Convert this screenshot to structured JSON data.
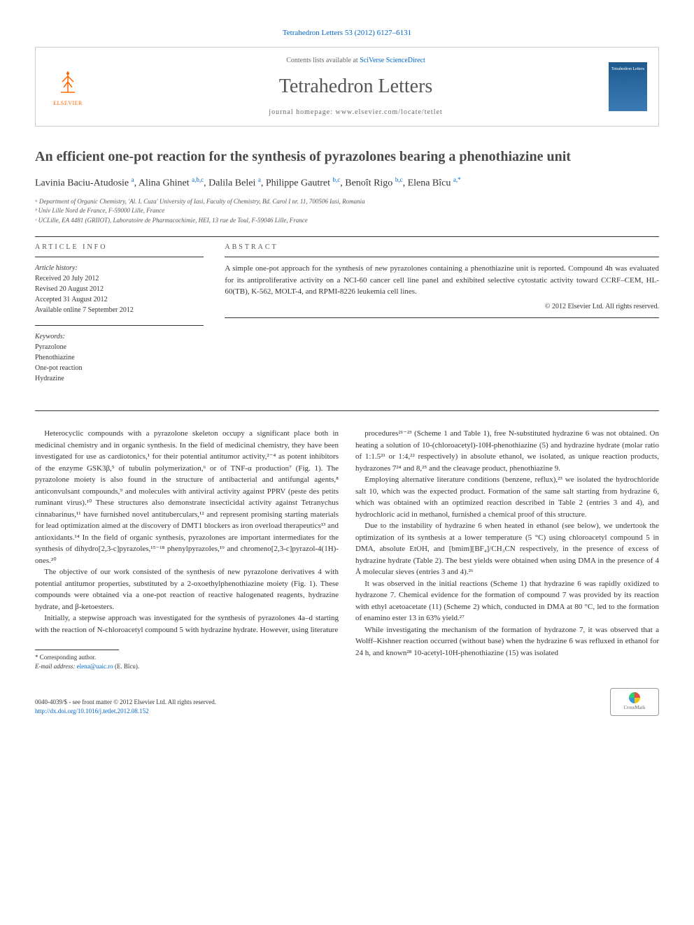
{
  "citation": "Tetrahedron Letters 53 (2012) 6127–6131",
  "header": {
    "contents_prefix": "Contents lists available at ",
    "contents_link": "SciVerse ScienceDirect",
    "journal_name": "Tetrahedron Letters",
    "homepage_prefix": "journal homepage: ",
    "homepage_url": "www.elsevier.com/locate/tetlet",
    "publisher": "ELSEVIER",
    "cover_label": "Tetrahedron Letters"
  },
  "title": "An efficient one-pot reaction for the synthesis of pyrazolones bearing a phenothiazine unit",
  "authors_html": "Lavinia Baciu-Atudosie <sup>a</sup>, Alina Ghinet <sup>a,b,c</sup>, Dalila Belei <sup>a</sup>, Philippe Gautret <sup>b,c</sup>, Benoît Rigo <sup>b,c</sup>, Elena Bîcu <sup>a,*</sup>",
  "affiliations": [
    "ᵃ Department of Organic Chemistry, 'Al. I. Cuza' University of Iasi, Faculty of Chemistry, Bd. Carol I nr. 11, 700506 Iasi, Romania",
    "ᵇ Univ Lille Nord de France, F-59000 Lille, France",
    "ᶜ UCLille, EA 4481 (GRIIOT), Laboratoire de Pharmacochimie, HEI, 13 rue de Toul, F-59046 Lille, France"
  ],
  "article_info": {
    "heading": "ARTICLE INFO",
    "history_label": "Article history:",
    "received": "Received 20 July 2012",
    "revised": "Revised 20 August 2012",
    "accepted": "Accepted 31 August 2012",
    "online": "Available online 7 September 2012",
    "keywords_label": "Keywords:",
    "keywords": [
      "Pyrazolone",
      "Phenothiazine",
      "One-pot reaction",
      "Hydrazine"
    ]
  },
  "abstract": {
    "heading": "ABSTRACT",
    "text": "A simple one-pot approach for the synthesis of new pyrazolones containing a phenothiazine unit is reported. Compound 4h was evaluated for its antiproliferative activity on a NCI-60 cancer cell line panel and exhibited selective cytostatic activity toward CCRF–CEM, HL-60(TB), K-562, MOLT-4, and RPMI-8226 leukemia cell lines.",
    "copyright": "© 2012 Elsevier Ltd. All rights reserved."
  },
  "body": {
    "p1": "Heterocyclic compounds with a pyrazolone skeleton occupy a significant place both in medicinal chemistry and in organic synthesis. In the field of medicinal chemistry, they have been investigated for use as cardiotonics,¹ for their potential antitumor activity,²⁻⁴ as potent inhibitors of the enzyme GSK3β,⁵ of tubulin polymerization,⁶ or of TNF-α production⁷ (Fig. 1). The pyrazolone moiety is also found in the structure of antibacterial and antifungal agents,⁸ anticonvulsant compounds,⁹ and molecules with antiviral activity against PPRV (peste des petits ruminant virus).¹⁰ These structures also demonstrate insecticidal activity against Tetranychus cinnabarinus,¹¹ have furnished novel antituberculars,¹² and represent promising starting materials for lead optimization aimed at the discovery of DMT1 blockers as iron overload therapeutics¹³ and antioxidants.¹⁴ In the field of organic synthesis, pyrazolones are important intermediates for the synthesis of dihydro[2,3-c]pyrazoles,¹⁵⁻¹⁸ phenylpyrazoles,¹⁹ and chromeno[2,3-c]pyrazol-4(1H)-ones.²⁰",
    "p2": "The objective of our work consisted of the synthesis of new pyrazolone derivatives 4 with potential antitumor properties, substituted by a 2-oxoethylphenothiazine moiety (Fig. 1). These compounds were obtained via a one-pot reaction of reactive halogenated reagents, hydrazine hydrate, and β-ketoesters.",
    "p3": "Initially, a stepwise approach was investigated for the synthesis of pyrazolones 4a–d starting with the reaction of N-chloroacetyl compound 5 with hydrazine hydrate. However, using literature",
    "p4": "procedures²¹⁻²³ (Scheme 1 and Table 1), free N-substituted hydrazine 6 was not obtained. On heating a solution of 10-(chloroacetyl)-10H-phenothiazine (5) and hydrazine hydrate (molar ratio of 1:1.5²¹ or 1:4,²² respectively) in absolute ethanol, we isolated, as unique reaction products, hydrazones 7²⁴ and 8,²⁵ and the cleavage product, phenothiazine 9.",
    "p5": "Employing alternative literature conditions (benzene, reflux),²³ we isolated the hydrochloride salt 10, which was the expected product. Formation of the same salt starting from hydrazine 6, which was obtained with an optimized reaction described in Table 2 (entries 3 and 4), and hydrochloric acid in methanol, furnished a chemical proof of this structure.",
    "p6": "Due to the instability of hydrazine 6 when heated in ethanol (see below), we undertook the optimization of its synthesis at a lower temperature (5 °C) using chloroacetyl compound 5 in DMA, absolute EtOH, and [bmim][BF₄]/CH₃CN respectively, in the presence of excess of hydrazine hydrate (Table 2). The best yields were obtained when using DMA in the presence of 4 Å molecular sieves (entries 3 and 4).²⁶",
    "p7": "It was observed in the initial reactions (Scheme 1) that hydrazine 6 was rapidly oxidized to hydrazone 7. Chemical evidence for the formation of compound 7 was provided by its reaction with ethyl acetoacetate (11) (Scheme 2) which, conducted in DMA at 80 °C, led to the formation of enamino ester 13 in 63% yield.²⁷",
    "p8": "While investigating the mechanism of the formation of hydrazone 7, it was observed that a Wolff–Kishner reaction occurred (without base) when the hydrazine 6 was refluxed in ethanol for 24 h, and known²⁸ 10-acetyl-10H-phenothiazine (15) was isolated"
  },
  "footnotes": {
    "corr": "* Corresponding author.",
    "email_label": "E-mail address: ",
    "email": "elena@uaic.ro",
    "email_author": " (E. Bîcu)."
  },
  "footer": {
    "issn_line": "0040-4039/$ - see front matter © 2012 Elsevier Ltd. All rights reserved.",
    "doi": "http://dx.doi.org/10.1016/j.tetlet.2012.08.152",
    "crossmark": "CrossMark"
  },
  "colors": {
    "link": "#0066cc",
    "orange": "#ff6600",
    "text": "#333333",
    "rule": "#333333"
  }
}
